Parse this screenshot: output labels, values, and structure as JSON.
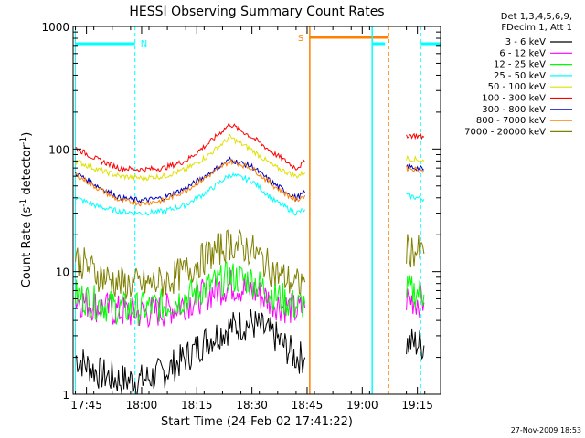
{
  "chart_data": {
    "type": "line",
    "title": "HESSI Observing Summary Count Rates",
    "xlabel": "Start Time (24-Feb-02 17:41:22)",
    "ylabel_main": "Count Rate (s",
    "ylabel_sup1": "-1",
    "ylabel_mid": " detector",
    "ylabel_sup2": "-1",
    "ylabel_end": ")",
    "yscale": "log",
    "ylim": [
      1,
      1000
    ],
    "xlim_minutes": [
      17.7,
      19.36
    ],
    "x_unit": "time of day",
    "xticks": [
      {
        "label": "17:45",
        "value": 17.75
      },
      {
        "label": "18:00",
        "value": 18.0
      },
      {
        "label": "18:15",
        "value": 18.25
      },
      {
        "label": "18:30",
        "value": 18.5
      },
      {
        "label": "18:45",
        "value": 18.75
      },
      {
        "label": "19:00",
        "value": 19.0
      },
      {
        "label": "19:15",
        "value": 19.25
      }
    ],
    "yticks": [
      {
        "label": "1",
        "value": 1
      },
      {
        "label": "10",
        "value": 10
      },
      {
        "label": "100",
        "value": 100
      },
      {
        "label": "1000",
        "value": 1000
      }
    ],
    "legend_position": "right",
    "legend_header": [
      "Det 1,3,4,5,6,9,",
      "FDecim 1, Att 1"
    ],
    "series": [
      {
        "name": "3 - 6 keV",
        "color": "#000000",
        "x": [
          17.7,
          17.8,
          17.9,
          18.0,
          18.1,
          18.2,
          18.3,
          18.4,
          18.5,
          18.6,
          18.7,
          18.74,
          18.75,
          19.18,
          19.2,
          19.25,
          19.28
        ],
        "y": [
          2.0,
          1.5,
          1.3,
          1.3,
          1.5,
          2.0,
          2.8,
          3.5,
          3.8,
          3.0,
          2.0,
          2.0,
          null,
          null,
          2.6,
          2.6,
          2.5
        ]
      },
      {
        "name": "6 - 12 keV",
        "color": "#ff00ff",
        "x": [
          17.7,
          17.8,
          17.9,
          18.0,
          18.1,
          18.2,
          18.3,
          18.4,
          18.5,
          18.6,
          18.7,
          18.74,
          18.75,
          19.18,
          19.2,
          19.25,
          19.28
        ],
        "y": [
          6.0,
          5.2,
          4.7,
          4.6,
          4.8,
          5.5,
          6.6,
          7.8,
          7.0,
          5.6,
          4.8,
          5.0,
          null,
          null,
          6.0,
          5.8,
          5.6
        ]
      },
      {
        "name": "12 - 25 keV",
        "color": "#00ff00",
        "x": [
          17.7,
          17.8,
          17.9,
          18.0,
          18.1,
          18.2,
          18.3,
          18.4,
          18.5,
          18.6,
          18.7,
          18.74,
          18.75,
          19.18,
          19.2,
          19.25,
          19.28
        ],
        "y": [
          6.5,
          5.5,
          5.0,
          5.0,
          5.3,
          6.2,
          7.5,
          9.0,
          8.5,
          6.5,
          5.2,
          5.5,
          null,
          null,
          7.0,
          6.8,
          6.5
        ]
      },
      {
        "name": "25 - 50 keV",
        "color": "#00ffff",
        "x": [
          17.7,
          17.8,
          17.9,
          18.0,
          18.1,
          18.2,
          18.3,
          18.4,
          18.5,
          18.6,
          18.7,
          18.74,
          18.75,
          19.18,
          19.2,
          19.25,
          19.28
        ],
        "y": [
          40,
          34,
          31,
          30,
          31,
          35,
          45,
          62,
          55,
          38,
          30,
          32,
          null,
          null,
          42,
          40,
          39
        ]
      },
      {
        "name": "50 - 100 keV",
        "color": "#e0e000",
        "x": [
          17.7,
          17.8,
          17.9,
          18.0,
          18.1,
          18.2,
          18.3,
          18.4,
          18.5,
          18.6,
          18.7,
          18.74,
          18.75,
          19.18,
          19.2,
          19.25,
          19.28
        ],
        "y": [
          80,
          68,
          60,
          58,
          60,
          68,
          88,
          125,
          98,
          72,
          60,
          64,
          null,
          null,
          84,
          82,
          80
        ]
      },
      {
        "name": "100 - 300 keV",
        "color": "#ff0000",
        "x": [
          17.7,
          17.8,
          17.9,
          18.0,
          18.1,
          18.2,
          18.3,
          18.4,
          18.5,
          18.6,
          18.7,
          18.74,
          18.75,
          19.18,
          19.2,
          19.25,
          19.28
        ],
        "y": [
          102,
          82,
          70,
          68,
          70,
          80,
          110,
          160,
          125,
          92,
          70,
          78,
          null,
          null,
          130,
          128,
          125
        ]
      },
      {
        "name": "300 - 800 keV",
        "color": "#0000c0",
        "x": [
          17.7,
          17.8,
          17.9,
          18.0,
          18.1,
          18.2,
          18.3,
          18.4,
          18.5,
          18.6,
          18.7,
          18.74,
          18.75,
          19.18,
          19.2,
          19.25,
          19.28
        ],
        "y": [
          64,
          50,
          40,
          38,
          40,
          48,
          62,
          82,
          72,
          52,
          40,
          44,
          null,
          null,
          72,
          70,
          68
        ]
      },
      {
        "name": "800 - 7000 keV",
        "color": "#ff8000",
        "x": [
          17.7,
          17.8,
          17.9,
          18.0,
          18.1,
          18.2,
          18.3,
          18.4,
          18.5,
          18.6,
          18.7,
          18.74,
          18.75,
          19.18,
          19.2,
          19.25,
          19.28
        ],
        "y": [
          62,
          48,
          38,
          36,
          38,
          46,
          60,
          80,
          70,
          50,
          38,
          42,
          null,
          null,
          70,
          68,
          66
        ]
      },
      {
        "name": "7000 - 20000 keV",
        "color": "#808000",
        "x": [
          17.7,
          17.8,
          17.9,
          18.0,
          18.1,
          18.2,
          18.3,
          18.4,
          18.5,
          18.6,
          18.7,
          18.74,
          18.75,
          19.18,
          19.2,
          19.25,
          19.28
        ],
        "y": [
          13,
          9.5,
          8.0,
          7.8,
          8.2,
          10.0,
          13.5,
          17.0,
          15.0,
          10.0,
          7.8,
          8.2,
          null,
          null,
          15.0,
          14.5,
          14.0
        ]
      }
    ],
    "annotations": [
      {
        "label": "N",
        "color": "#00ffff"
      },
      {
        "label": "S",
        "color": "#ff8000"
      }
    ],
    "footer_timestamp": "27-Nov-2009 18:53"
  }
}
